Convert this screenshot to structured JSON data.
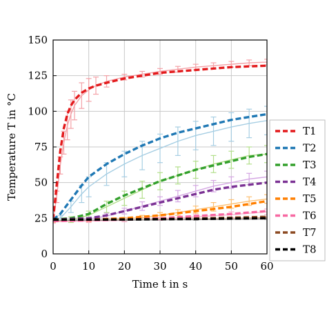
{
  "chart_data": {
    "type": "line",
    "xlabel": "Time t in s",
    "ylabel": "Temperature T in °C",
    "xlim": [
      0,
      60
    ],
    "ylim": [
      0,
      150
    ],
    "xticks": [
      0,
      10,
      20,
      30,
      40,
      50,
      60
    ],
    "yticks": [
      0,
      25,
      50,
      75,
      100,
      125,
      150
    ],
    "grid": true,
    "legend_position": "right",
    "series": [
      {
        "name": "T1",
        "color": "#e31a1c",
        "light_color": "#f4a0a6",
        "x": [
          0,
          1,
          2,
          3,
          4,
          5,
          6,
          8,
          10,
          12,
          15,
          20,
          25,
          30,
          35,
          40,
          45,
          50,
          55,
          60
        ],
        "model": [
          24,
          48,
          72,
          88,
          98,
          104,
          108,
          113,
          116,
          118,
          120,
          123,
          125,
          127,
          128,
          129,
          130,
          131,
          131.5,
          132
        ],
        "measured": [
          24,
          40,
          62,
          78,
          90,
          98,
          104,
          111,
          115,
          118,
          121,
          124,
          126,
          128,
          129.5,
          131,
          132,
          133,
          134,
          134.5
        ],
        "err": [
          2,
          4,
          6,
          8,
          10,
          10,
          10,
          9,
          8,
          6,
          4,
          2,
          2,
          2,
          2,
          2,
          2,
          2,
          2,
          2
        ]
      },
      {
        "name": "T2",
        "color": "#1f78b4",
        "light_color": "#a6cee3",
        "x": [
          0,
          2,
          5,
          8,
          10,
          15,
          20,
          25,
          30,
          35,
          40,
          45,
          50,
          55,
          60
        ],
        "model": [
          24,
          28,
          38,
          48,
          54,
          63,
          70,
          76,
          81,
          85,
          88,
          91,
          94,
          96,
          98
        ],
        "measured": [
          24,
          25,
          33,
          42,
          47,
          56,
          63,
          69,
          74,
          79,
          83,
          86,
          89,
          91.5,
          93.5
        ],
        "err": [
          1,
          2,
          4,
          6,
          7,
          8,
          9,
          10,
          10,
          10,
          10,
          10,
          10,
          10,
          10
        ]
      },
      {
        "name": "T3",
        "color": "#33a02c",
        "light_color": "#b2df8a",
        "x": [
          0,
          5,
          10,
          15,
          20,
          25,
          30,
          35,
          40,
          45,
          50,
          55,
          60
        ],
        "model": [
          24,
          25,
          28,
          35,
          41,
          46,
          51,
          55,
          59,
          62,
          65,
          68,
          70
        ],
        "measured": [
          23,
          24,
          27,
          33,
          39,
          45,
          51,
          55,
          59,
          63,
          66,
          69,
          70
        ],
        "err": [
          1,
          2,
          3,
          4,
          5,
          6,
          6,
          6,
          6,
          6,
          6,
          6,
          6
        ]
      },
      {
        "name": "T4",
        "color": "#7b3294",
        "light_color": "#d4a6e3",
        "x": [
          0,
          10,
          15,
          20,
          25,
          30,
          35,
          40,
          45,
          50,
          55,
          60
        ],
        "model": [
          24,
          25,
          27,
          30,
          33,
          36,
          39,
          42,
          45,
          47,
          48.5,
          50
        ],
        "measured": [
          23,
          24.5,
          26.5,
          30,
          33.5,
          37,
          40.5,
          44,
          47.5,
          50,
          52.5,
          54
        ],
        "err": [
          1,
          1,
          2,
          2,
          3,
          3,
          4,
          4,
          4,
          4,
          4,
          4
        ]
      },
      {
        "name": "T5",
        "color": "#ff7f00",
        "light_color": "#fdbf6f",
        "x": [
          0,
          10,
          20,
          25,
          30,
          35,
          40,
          45,
          50,
          55,
          60
        ],
        "model": [
          24,
          24,
          25,
          26,
          27,
          28.5,
          30,
          31.5,
          33,
          35,
          37
        ],
        "measured": [
          23,
          23.5,
          24.5,
          25.5,
          27,
          29,
          31,
          33,
          35,
          37,
          38.5
        ],
        "err": [
          1,
          1,
          1,
          1.5,
          2,
          2,
          2.5,
          3,
          3,
          3,
          3
        ]
      },
      {
        "name": "T6",
        "color": "#f768a1",
        "light_color": "#fbb4d0",
        "x": [
          0,
          10,
          20,
          30,
          40,
          50,
          60
        ],
        "model": [
          23,
          23.5,
          24,
          25,
          26.5,
          28,
          30
        ],
        "measured": [
          22.5,
          23,
          23.5,
          24.5,
          26,
          27.5,
          29.5
        ],
        "err": [
          1,
          1,
          1,
          1,
          1.5,
          2,
          2
        ]
      },
      {
        "name": "T7",
        "color": "#8c4a22",
        "light_color": "#d9a98a",
        "x": [
          0,
          20,
          40,
          60
        ],
        "model": [
          24,
          24.2,
          24.8,
          26
        ],
        "measured": [
          23.5,
          23.8,
          24.4,
          25.5
        ],
        "err": [
          0.5,
          0.5,
          0.5,
          0.5
        ]
      },
      {
        "name": "T8",
        "color": "#000000",
        "light_color": "#888888",
        "x": [
          0,
          20,
          40,
          60
        ],
        "model": [
          24,
          24.1,
          24.5,
          25
        ],
        "measured": [
          23.5,
          23.7,
          24,
          24.5
        ],
        "err": [
          0.3,
          0.3,
          0.3,
          0.3
        ]
      }
    ]
  }
}
